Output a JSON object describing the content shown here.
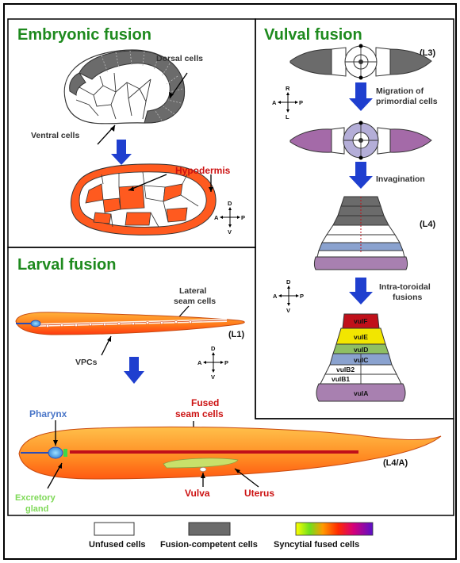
{
  "panels": {
    "embryonic": {
      "title": "Embryonic fusion",
      "dorsal": "Dorsal cells",
      "ventral": "Ventral cells",
      "hypodermis": "Hypodermis"
    },
    "vulval": {
      "title": "Vulval fusion",
      "stage_l3": "(L3)",
      "migration_1": "Migration of",
      "migration_2": "primordial cells",
      "invagination": "Invagination",
      "stage_l4": "(L4)",
      "intra_1": "Intra-toroidal",
      "intra_2": "fusions",
      "rings": [
        "vulF",
        "vulE",
        "vulD",
        "vulC",
        "vulB2",
        "vulB1",
        "vulA"
      ]
    },
    "larval": {
      "title": "Larval fusion",
      "lateral_1": "Lateral",
      "lateral_2": "seam cells",
      "stage_l1": "(L1)",
      "vpcs": "VPCs",
      "fused_1": "Fused",
      "fused_2": "seam cells",
      "pharynx": "Pharynx",
      "stage_l4a": "(L4/A)",
      "excretory_1": "Excretory",
      "excretory_2": "gland",
      "vulva": "Vulva",
      "uterus": "Uterus"
    }
  },
  "axes": {
    "ap_dv": {
      "top": "D",
      "bottom": "V",
      "left": "A",
      "right": "P"
    },
    "ap_rl": {
      "top": "R",
      "bottom": "L",
      "left": "A",
      "right": "P"
    }
  },
  "legend": {
    "unfused": "Unfused cells",
    "competent": "Fusion-competent cells",
    "syncytial": "Syncytial fused cells"
  },
  "colors": {
    "title_green": "#1e8a1e",
    "fused_orange": "#ff5a1f",
    "competent_gray": "#6b6b6b",
    "arrow_blue": "#1f3fcf",
    "vulF": "#c0101a",
    "vulE": "#f2e600",
    "vulD": "#8fbf63",
    "vulC": "#8aa2cf",
    "vulA": "#a880b0"
  }
}
